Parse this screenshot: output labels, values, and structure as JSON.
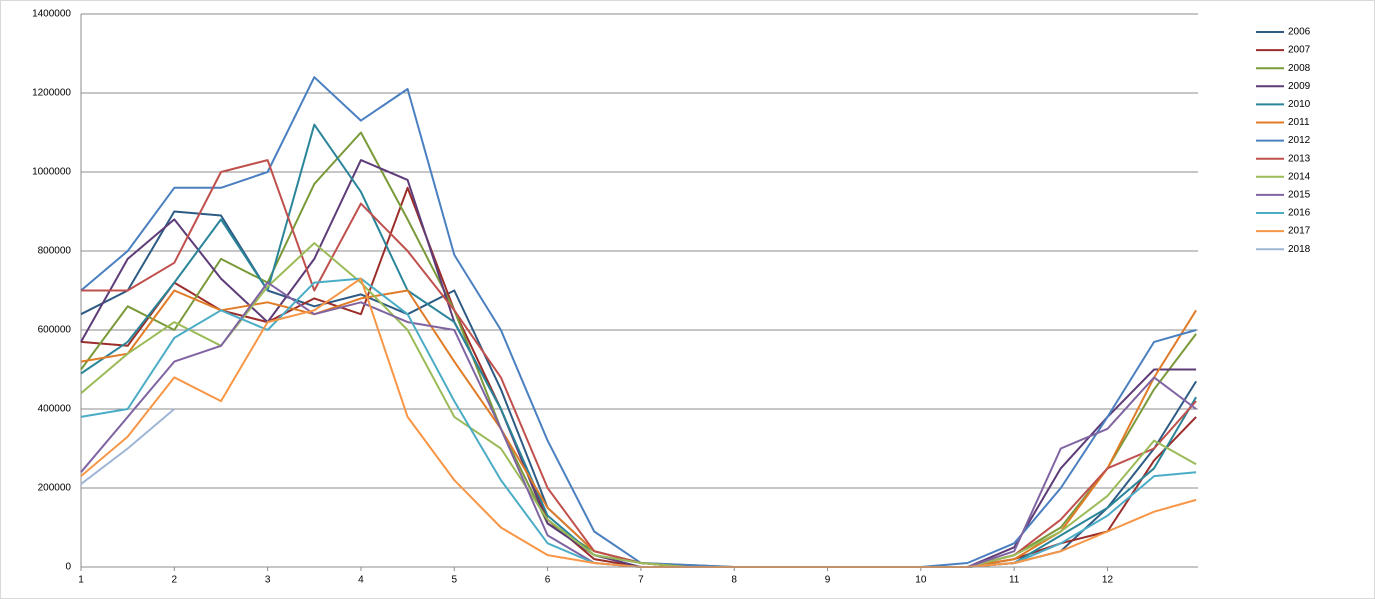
{
  "chart_data": {
    "type": "line",
    "x": [
      1,
      1.5,
      2,
      2.5,
      3,
      3.5,
      4,
      4.5,
      5,
      5.5,
      6,
      6.5,
      7,
      7.5,
      8,
      8.5,
      9,
      9.5,
      10,
      10.5,
      11,
      11.5,
      12,
      12.5,
      12.95
    ],
    "xlim": [
      1,
      12.97
    ],
    "xticks": [
      1,
      2,
      3,
      4,
      5,
      6,
      7,
      8,
      9,
      10,
      11,
      12
    ],
    "ylim": [
      0,
      1400000
    ],
    "yticks": [
      0,
      200000,
      400000,
      600000,
      800000,
      1000000,
      1200000,
      1400000
    ],
    "grid": true,
    "legend": "right",
    "series": [
      {
        "name": "2006",
        "color": "#2e5b84",
        "values": [
          640000,
          700000,
          900000,
          890000,
          700000,
          660000,
          690000,
          640000,
          700000,
          450000,
          150000,
          40000,
          10000,
          0,
          0,
          0,
          0,
          0,
          0,
          0,
          10000,
          40000,
          150000,
          300000,
          470000
        ]
      },
      {
        "name": "2007",
        "color": "#9b2d2a",
        "values": [
          570000,
          560000,
          720000,
          650000,
          620000,
          680000,
          640000,
          960000,
          650000,
          400000,
          120000,
          20000,
          0,
          0,
          0,
          0,
          0,
          0,
          0,
          0,
          20000,
          60000,
          90000,
          270000,
          380000
        ]
      },
      {
        "name": "2008",
        "color": "#7a9a3a",
        "values": [
          500000,
          660000,
          600000,
          780000,
          720000,
          970000,
          1100000,
          880000,
          650000,
          350000,
          110000,
          40000,
          10000,
          5000,
          0,
          0,
          0,
          0,
          0,
          0,
          30000,
          100000,
          250000,
          450000,
          590000
        ]
      },
      {
        "name": "2009",
        "color": "#5e3c78",
        "values": [
          570000,
          780000,
          880000,
          730000,
          620000,
          780000,
          1030000,
          980000,
          620000,
          400000,
          110000,
          30000,
          0,
          0,
          0,
          0,
          0,
          0,
          0,
          0,
          50000,
          250000,
          380000,
          500000,
          500000
        ]
      },
      {
        "name": "2010",
        "color": "#2a8599",
        "values": [
          490000,
          570000,
          720000,
          880000,
          700000,
          1120000,
          950000,
          700000,
          620000,
          400000,
          130000,
          30000,
          10000,
          0,
          0,
          0,
          0,
          0,
          0,
          0,
          10000,
          80000,
          150000,
          250000,
          430000
        ]
      },
      {
        "name": "2011",
        "color": "#e07b27",
        "values": [
          520000,
          540000,
          700000,
          650000,
          670000,
          640000,
          680000,
          700000,
          520000,
          350000,
          150000,
          40000,
          10000,
          0,
          0,
          0,
          0,
          0,
          0,
          0,
          20000,
          90000,
          250000,
          480000,
          650000
        ]
      },
      {
        "name": "2012",
        "color": "#4a7fc0",
        "values": [
          700000,
          800000,
          960000,
          960000,
          1000000,
          1240000,
          1130000,
          1210000,
          790000,
          600000,
          320000,
          90000,
          10000,
          5000,
          0,
          0,
          0,
          0,
          0,
          10000,
          60000,
          200000,
          380000,
          570000,
          600000
        ]
      },
      {
        "name": "2013",
        "color": "#c0504d",
        "values": [
          700000,
          700000,
          770000,
          1000000,
          1030000,
          700000,
          920000,
          800000,
          650000,
          480000,
          200000,
          40000,
          10000,
          0,
          0,
          0,
          0,
          0,
          0,
          0,
          30000,
          120000,
          250000,
          300000,
          420000
        ]
      },
      {
        "name": "2014",
        "color": "#9bbb59",
        "values": [
          440000,
          540000,
          620000,
          560000,
          710000,
          820000,
          720000,
          600000,
          380000,
          300000,
          120000,
          30000,
          10000,
          0,
          0,
          0,
          0,
          0,
          0,
          0,
          30000,
          90000,
          180000,
          320000,
          260000
        ]
      },
      {
        "name": "2015",
        "color": "#8064a2",
        "values": [
          240000,
          380000,
          520000,
          560000,
          720000,
          640000,
          670000,
          620000,
          600000,
          350000,
          80000,
          10000,
          0,
          0,
          0,
          0,
          0,
          0,
          0,
          0,
          40000,
          300000,
          350000,
          480000,
          400000
        ]
      },
      {
        "name": "2016",
        "color": "#4bacc6",
        "values": [
          380000,
          400000,
          580000,
          650000,
          600000,
          720000,
          730000,
          640000,
          420000,
          220000,
          60000,
          10000,
          0,
          0,
          0,
          0,
          0,
          0,
          0,
          0,
          10000,
          60000,
          130000,
          230000,
          240000
        ]
      },
      {
        "name": "2017",
        "color": "#f79646",
        "values": [
          230000,
          330000,
          480000,
          420000,
          620000,
          650000,
          730000,
          380000,
          220000,
          100000,
          30000,
          10000,
          0,
          0,
          0,
          0,
          0,
          0,
          0,
          0,
          10000,
          40000,
          90000,
          140000,
          170000
        ]
      },
      {
        "name": "2018",
        "color": "#9fb5d6",
        "values": [
          210000,
          300000,
          400000,
          null,
          null,
          null,
          null,
          null,
          null,
          null,
          null,
          null,
          null,
          null,
          null,
          null,
          null,
          null,
          null,
          null,
          null,
          null,
          null,
          null,
          null
        ]
      }
    ]
  }
}
